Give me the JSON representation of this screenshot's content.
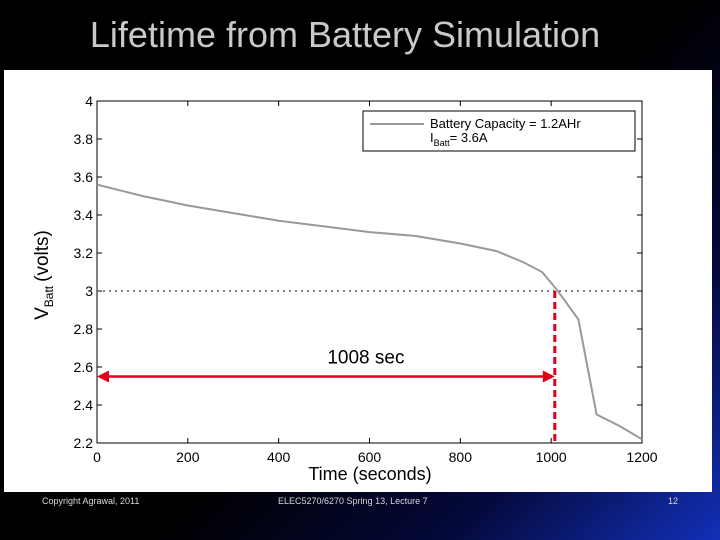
{
  "slide": {
    "title": "Lifetime from Battery Simulation",
    "footer_left": "Copyright Agrawal, 2011",
    "footer_center": "ELEC5270/6270 Spring 13, Lecture 7",
    "page_number": "12"
  },
  "chart_data": {
    "type": "line",
    "title": "",
    "xlabel": "Time (seconds)",
    "ylabel": "V",
    "ylabel_sub": "Batt",
    "ylabel_unit": "(volts)",
    "xlim": [
      0,
      1200
    ],
    "ylim": [
      2.2,
      4.0
    ],
    "xticks": [
      "0",
      "200",
      "400",
      "600",
      "800",
      "1000",
      "1200"
    ],
    "yticks": [
      "2.2",
      "2.4",
      "2.6",
      "2.8",
      "3",
      "3.2",
      "3.4",
      "3.6",
      "3.8",
      "4"
    ],
    "grid": false,
    "legend": {
      "placement": "top-right",
      "line1": "Battery Capacity = 1.2AHr",
      "line2_main": "I",
      "line2_sub": "Batt",
      "line2_rest": "= 3.6A"
    },
    "series": [
      {
        "x": [
          0,
          50,
          100,
          200,
          300,
          400,
          500,
          600,
          700,
          800,
          880,
          940,
          980,
          1008,
          1030,
          1060,
          1080,
          1100,
          1150,
          1200
        ],
        "y": [
          3.56,
          3.53,
          3.5,
          3.45,
          3.41,
          3.37,
          3.34,
          3.31,
          3.29,
          3.25,
          3.21,
          3.15,
          3.1,
          3.02,
          2.95,
          2.85,
          2.6,
          2.35,
          2.29,
          2.22
        ],
        "color": "#999999"
      }
    ],
    "reference_line": {
      "y": 3.0,
      "style": "dotted",
      "color": "#555555"
    },
    "annotation": {
      "text": "1008 sec",
      "x_from": 0,
      "x_to": 1008,
      "y": 2.55,
      "color": "#e0001a"
    }
  }
}
